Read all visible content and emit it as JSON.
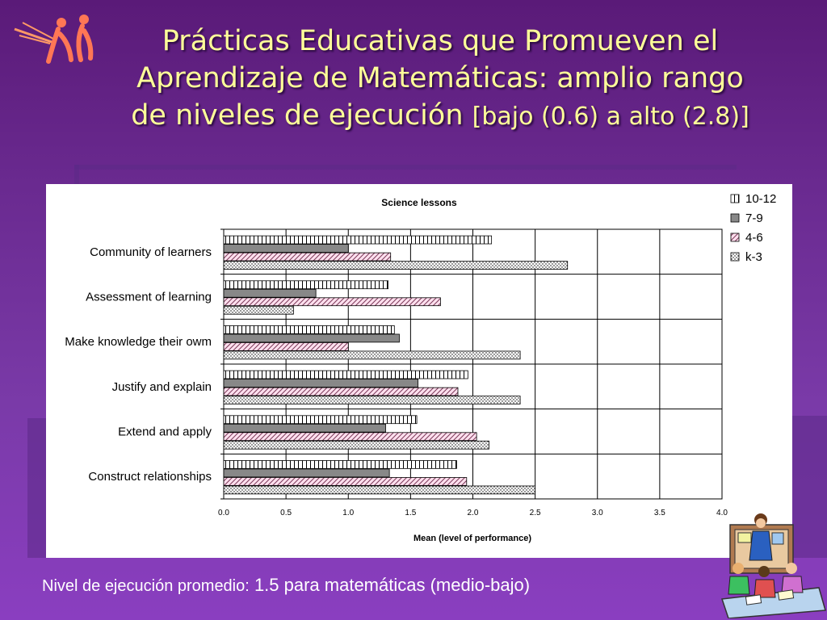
{
  "title": {
    "line1": "Prácticas Educativas que Promueven el",
    "line2": "Aprendizaje de Matemáticas: amplio rango",
    "line3_main": "de niveles de ejecución",
    "line3_sub": "[bajo (0.6) a alto (2.8)]"
  },
  "footer": {
    "label": "Nivel de ejecución promedio:",
    "value": "1.5 para matemáticas (medio-bajo)"
  },
  "colors": {
    "accent_title": "#ffff99",
    "background": "#6a2a90"
  },
  "chart_data": {
    "type": "bar",
    "orientation": "horizontal",
    "title": "Science lessons",
    "xlabel": "Mean (level of performance)",
    "ylabel": "",
    "xlim": [
      0,
      4
    ],
    "xticks": [
      "0.0",
      "0.5",
      "1.0",
      "1.5",
      "2.0",
      "2.5",
      "3.0",
      "3.5",
      "4.0"
    ],
    "grid": true,
    "legend_position": "top-right",
    "categories": [
      "Community of learners",
      "Assessment of learning",
      "Make knowledge their owm",
      "Justify and explain",
      "Extend and apply",
      "Construct relationships"
    ],
    "series": [
      {
        "name": "10-12",
        "pattern": "vertical-lines",
        "values": [
          2.15,
          1.32,
          1.37,
          1.96,
          1.55,
          1.87
        ]
      },
      {
        "name": "7-9",
        "pattern": "solid-gray",
        "values": [
          1.0,
          0.74,
          1.41,
          1.56,
          1.3,
          1.33
        ]
      },
      {
        "name": "4-6",
        "pattern": "diagonal",
        "values": [
          1.34,
          1.74,
          1.0,
          1.88,
          2.03,
          1.95
        ]
      },
      {
        "name": "k-3",
        "pattern": "dots",
        "values": [
          2.76,
          0.56,
          2.38,
          2.38,
          2.13,
          2.5
        ]
      }
    ]
  }
}
